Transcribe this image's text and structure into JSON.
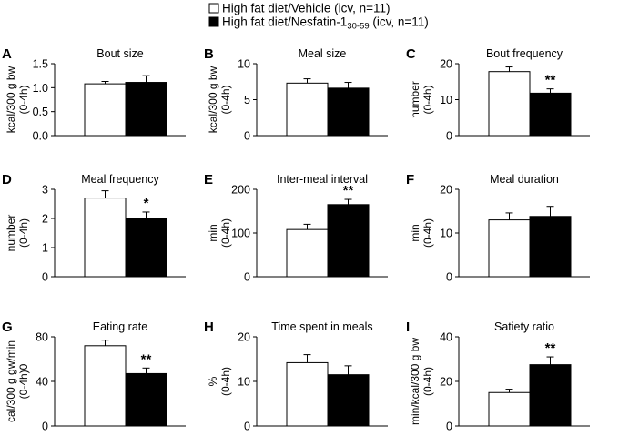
{
  "legend": {
    "vehicle": {
      "label": "High fat diet/Vehicle (icv, n=11)",
      "color": "#ffffff"
    },
    "nesfatin": {
      "label_prefix": "High fat diet/Nesfatin-1",
      "label_sub": "30-59",
      "label_suffix": " (icv, n=11)",
      "color": "#000000"
    }
  },
  "chart_data": [
    {
      "panel": "A",
      "type": "bar",
      "title": "Bout size",
      "ylabel_lines": [
        "kcal/300 g bw",
        "(0-4h)"
      ],
      "categories": [
        "High fat diet/Vehicle",
        "High fat diet/Nesfatin-1 30-59"
      ],
      "values": [
        1.08,
        1.11
      ],
      "errors": [
        0.05,
        0.14
      ],
      "ylim": [
        0,
        1.5
      ],
      "ticks": [
        0,
        0.5,
        1.0,
        1.5
      ],
      "tick_labels": [
        "0.0",
        "0.5",
        "1.0",
        "1.5"
      ],
      "significance": ""
    },
    {
      "panel": "B",
      "type": "bar",
      "title": "Meal size",
      "ylabel_lines": [
        "kcal/300 g bw",
        "(0-4h)"
      ],
      "categories": [
        "High fat diet/Vehicle",
        "High fat diet/Nesfatin-1 30-59"
      ],
      "values": [
        7.3,
        6.6
      ],
      "errors": [
        0.6,
        0.8
      ],
      "ylim": [
        0,
        10
      ],
      "ticks": [
        0,
        5,
        10
      ],
      "tick_labels": [
        "0",
        "5",
        "10"
      ],
      "significance": ""
    },
    {
      "panel": "C",
      "type": "bar",
      "title": "Bout frequency",
      "ylabel_lines": [
        "number",
        "(0-4h)"
      ],
      "categories": [
        "High fat diet/Vehicle",
        "High fat diet/Nesfatin-1 30-59"
      ],
      "values": [
        17.8,
        11.8
      ],
      "errors": [
        1.3,
        1.2
      ],
      "ylim": [
        0,
        20
      ],
      "ticks": [
        0,
        10,
        20
      ],
      "tick_labels": [
        "0",
        "10",
        "20"
      ],
      "significance": "**"
    },
    {
      "panel": "D",
      "type": "bar",
      "title": "Meal frequency",
      "ylabel_lines": [
        "number",
        "(0-4h)"
      ],
      "categories": [
        "High fat diet/Vehicle",
        "High fat diet/Nesfatin-1 30-59"
      ],
      "values": [
        2.7,
        2.0
      ],
      "errors": [
        0.25,
        0.22
      ],
      "ylim": [
        0,
        3
      ],
      "ticks": [
        0,
        1,
        2,
        3
      ],
      "tick_labels": [
        "0",
        "1",
        "2",
        "3"
      ],
      "significance": "*"
    },
    {
      "panel": "E",
      "type": "bar",
      "title": "Inter-meal interval",
      "ylabel_lines": [
        "min",
        "(0-4h)"
      ],
      "categories": [
        "High fat diet/Vehicle",
        "High fat diet/Nesfatin-1 30-59"
      ],
      "values": [
        108,
        165
      ],
      "errors": [
        12,
        12
      ],
      "ylim": [
        0,
        200
      ],
      "ticks": [
        0,
        100,
        200
      ],
      "tick_labels": [
        "0",
        "100",
        "200"
      ],
      "significance": "**"
    },
    {
      "panel": "F",
      "type": "bar",
      "title": "Meal duration",
      "ylabel_lines": [
        "min",
        "(0-4h)"
      ],
      "categories": [
        "High fat diet/Vehicle",
        "High fat diet/Nesfatin-1 30-59"
      ],
      "values": [
        13.0,
        13.8
      ],
      "errors": [
        1.6,
        2.3
      ],
      "ylim": [
        0,
        20
      ],
      "ticks": [
        0,
        10,
        20
      ],
      "tick_labels": [
        "0",
        "10",
        "20"
      ],
      "significance": ""
    },
    {
      "panel": "G",
      "type": "bar",
      "title": "Eating rate",
      "ylabel_lines": [
        "cal/300 g gw/min",
        "(0-4h)0"
      ],
      "categories": [
        "High fat diet/Vehicle",
        "High fat diet/Nesfatin-1 30-59"
      ],
      "values": [
        72,
        47
      ],
      "errors": [
        5,
        5
      ],
      "ylim": [
        0,
        80
      ],
      "ticks": [
        0,
        40,
        80
      ],
      "tick_labels": [
        "0",
        "40",
        "80"
      ],
      "significance": "**"
    },
    {
      "panel": "H",
      "type": "bar",
      "title": "Time spent in meals",
      "ylabel_lines": [
        "%",
        "(0-4h)"
      ],
      "categories": [
        "High fat diet/Vehicle",
        "High fat diet/Nesfatin-1 30-59"
      ],
      "values": [
        14.2,
        11.5
      ],
      "errors": [
        1.8,
        2.0
      ],
      "ylim": [
        0,
        20
      ],
      "ticks": [
        0,
        10,
        20
      ],
      "tick_labels": [
        "0",
        "10",
        "20"
      ],
      "significance": ""
    },
    {
      "panel": "I",
      "type": "bar",
      "title": "Satiety ratio",
      "ylabel_lines": [
        "min/kcal/300 g bw",
        "(0-4h)"
      ],
      "categories": [
        "High fat diet/Vehicle",
        "High fat diet/Nesfatin-1 30-59"
      ],
      "values": [
        15,
        27.5
      ],
      "errors": [
        1.5,
        3.5
      ],
      "ylim": [
        0,
        40
      ],
      "ticks": [
        0,
        20,
        40
      ],
      "tick_labels": [
        "0",
        "20",
        "40"
      ],
      "significance": "**"
    }
  ]
}
